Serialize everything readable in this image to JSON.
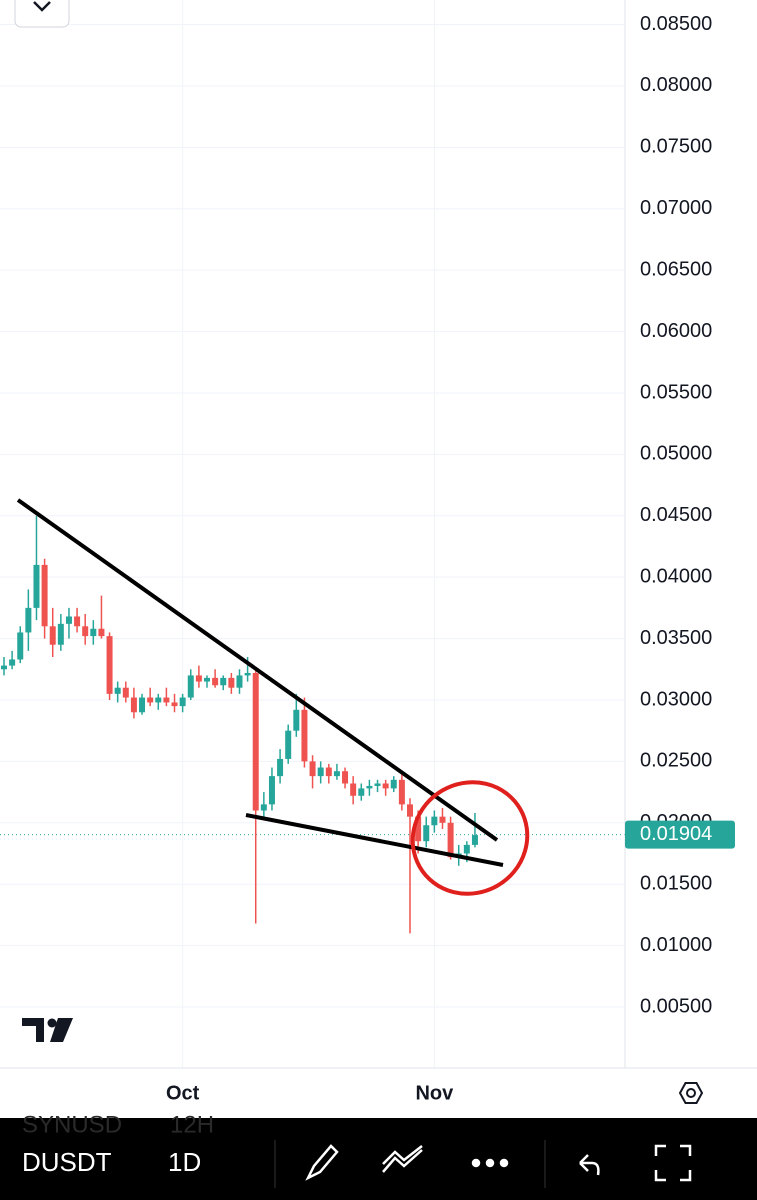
{
  "chart_data": {
    "type": "candlestick",
    "categories": [
      null,
      null,
      null,
      null,
      null,
      null,
      null,
      null,
      null,
      null,
      null,
      null,
      null,
      null,
      null,
      null,
      null,
      null,
      null,
      null,
      null,
      null,
      "Oct",
      null,
      null,
      null,
      null,
      null,
      null,
      null,
      null,
      null,
      null,
      null,
      null,
      null,
      null,
      null,
      null,
      null,
      null,
      null,
      null,
      null,
      null,
      null,
      null,
      null,
      null,
      null,
      null,
      null,
      null,
      "Nov",
      null,
      null,
      null,
      null,
      null
    ],
    "open": [
      0.0325,
      0.0328,
      0.0333,
      0.0355,
      0.0375,
      0.041,
      0.036,
      0.0345,
      0.0362,
      0.0368,
      0.036,
      0.0352,
      0.0358,
      0.0352,
      0.0305,
      0.031,
      0.0302,
      0.029,
      0.0302,
      0.0298,
      0.0302,
      0.0298,
      0.0295,
      0.0302,
      0.032,
      0.0315,
      0.0318,
      0.0312,
      0.0318,
      0.031,
      0.032,
      0.0322,
      0.021,
      0.0215,
      0.0238,
      0.0252,
      0.0275,
      0.0292,
      0.025,
      0.0238,
      0.0245,
      0.0238,
      0.0242,
      0.0232,
      0.0222,
      0.0228,
      0.023,
      0.0232,
      0.0228,
      0.0235,
      0.0215,
      0.0205,
      0.0185,
      0.0198,
      0.0205,
      0.02,
      0.0172,
      0.0175,
      0.0182
    ],
    "high": [
      0.0335,
      0.034,
      0.036,
      0.039,
      0.045,
      0.0415,
      0.0375,
      0.037,
      0.0375,
      0.0375,
      0.037,
      0.0365,
      0.0385,
      0.0355,
      0.0315,
      0.0315,
      0.031,
      0.0305,
      0.031,
      0.0305,
      0.031,
      0.0305,
      0.0305,
      0.0325,
      0.0328,
      0.032,
      0.0325,
      0.032,
      0.0322,
      0.0325,
      0.0335,
      0.0325,
      0.0225,
      0.0245,
      0.026,
      0.028,
      0.0305,
      0.0302,
      0.0255,
      0.025,
      0.0248,
      0.0248,
      0.0245,
      0.0238,
      0.0232,
      0.0235,
      0.0235,
      0.0235,
      0.0238,
      0.024,
      0.022,
      0.021,
      0.0205,
      0.021,
      0.0212,
      0.0205,
      0.0182,
      0.0185,
      0.0208
    ],
    "low": [
      0.032,
      0.0325,
      0.033,
      0.034,
      0.0365,
      0.035,
      0.0335,
      0.034,
      0.035,
      0.0355,
      0.0345,
      0.0345,
      0.035,
      0.03,
      0.0298,
      0.0298,
      0.0285,
      0.0288,
      0.0295,
      0.0292,
      0.0295,
      0.029,
      0.029,
      0.03,
      0.031,
      0.031,
      0.031,
      0.0308,
      0.0305,
      0.0305,
      0.0315,
      0.0118,
      0.0205,
      0.021,
      0.0232,
      0.0248,
      0.027,
      0.0245,
      0.0228,
      0.0232,
      0.0232,
      0.0235,
      0.0228,
      0.0215,
      0.0218,
      0.0222,
      0.0225,
      0.0222,
      0.0225,
      0.021,
      0.011,
      0.0175,
      0.018,
      0.0192,
      0.0195,
      0.017,
      0.0165,
      0.0168,
      0.018
    ],
    "close": [
      0.0328,
      0.0333,
      0.0355,
      0.0375,
      0.041,
      0.036,
      0.0345,
      0.0362,
      0.0368,
      0.036,
      0.0352,
      0.0358,
      0.0352,
      0.0305,
      0.031,
      0.0302,
      0.029,
      0.0302,
      0.0298,
      0.0302,
      0.0298,
      0.0295,
      0.0302,
      0.032,
      0.0315,
      0.0318,
      0.0312,
      0.0318,
      0.031,
      0.032,
      0.0322,
      0.021,
      0.0215,
      0.0238,
      0.0252,
      0.0275,
      0.0292,
      0.025,
      0.0238,
      0.0245,
      0.0238,
      0.0242,
      0.0232,
      0.0222,
      0.0228,
      0.023,
      0.0232,
      0.0228,
      0.0235,
      0.0215,
      0.0205,
      0.0185,
      0.0198,
      0.0205,
      0.02,
      0.0172,
      0.0175,
      0.0182,
      0.019
    ],
    "up_color": "#26a69a",
    "down_color": "#ef5350",
    "last_price": 0.01904,
    "ylim": [
      0,
      0.087
    ],
    "yticks": [
      {
        "value": 0.005,
        "label": "0.00500"
      },
      {
        "value": 0.01,
        "label": "0.01000"
      },
      {
        "value": 0.015,
        "label": "0.01500"
      },
      {
        "value": 0.02,
        "label": "0.02000"
      },
      {
        "value": 0.025,
        "label": "0.02500"
      },
      {
        "value": 0.03,
        "label": "0.03000"
      },
      {
        "value": 0.035,
        "label": "0.03500"
      },
      {
        "value": 0.04,
        "label": "0.04000"
      },
      {
        "value": 0.045,
        "label": "0.04500"
      },
      {
        "value": 0.05,
        "label": "0.05000"
      },
      {
        "value": 0.055,
        "label": "0.05500"
      },
      {
        "value": 0.06,
        "label": "0.06000"
      },
      {
        "value": 0.065,
        "label": "0.06500"
      },
      {
        "value": 0.07,
        "label": "0.07000"
      },
      {
        "value": 0.075,
        "label": "0.07500"
      },
      {
        "value": 0.08,
        "label": "0.08000"
      },
      {
        "value": 0.085,
        "label": "0.08500"
      }
    ],
    "grid": true
  },
  "toolbar": {
    "ghost_symbol": "SYNUSD",
    "ghost_interval": "12H",
    "symbol": "DUSDT",
    "interval": "1D"
  }
}
